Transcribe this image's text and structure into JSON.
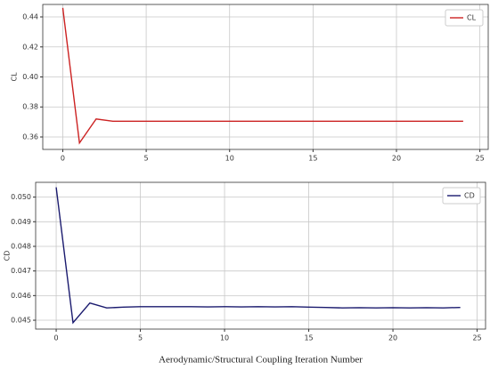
{
  "chart_data": [
    {
      "type": "line",
      "ylabel": "CL",
      "x": [
        0,
        1,
        2,
        3,
        4,
        5,
        6,
        7,
        8,
        9,
        10,
        11,
        12,
        13,
        14,
        15,
        16,
        17,
        18,
        19,
        20,
        21,
        22,
        23,
        24
      ],
      "series": [
        {
          "name": "CL",
          "color": "#cc2222",
          "values": [
            0.446,
            0.356,
            0.372,
            0.3705,
            0.3705,
            0.3705,
            0.3705,
            0.3705,
            0.3705,
            0.3705,
            0.3705,
            0.3705,
            0.3705,
            0.3705,
            0.3705,
            0.3705,
            0.3705,
            0.3705,
            0.3705,
            0.3705,
            0.3705,
            0.3705,
            0.3705,
            0.3705,
            0.3705
          ]
        }
      ],
      "xlim": [
        -1.2,
        25.5
      ],
      "xticks": [
        0,
        5,
        10,
        15,
        20,
        25
      ],
      "ylim": [
        0.3517,
        0.4483
      ],
      "yticks": [
        0.36,
        0.38,
        {
          "value": 0.4,
          "label": "0.40"
        },
        0.42,
        0.44
      ],
      "grid": true,
      "legend": "upper right"
    },
    {
      "type": "line",
      "ylabel": "CD",
      "xlabel": "Aerodynamic/Structural Coupling Iteration Number",
      "x": [
        0,
        1,
        2,
        3,
        4,
        5,
        6,
        7,
        8,
        9,
        10,
        11,
        12,
        13,
        14,
        15,
        16,
        17,
        18,
        19,
        20,
        21,
        22,
        23,
        24
      ],
      "series": [
        {
          "name": "CD",
          "color": "#1a1a6e",
          "values": [
            0.0504,
            0.0449,
            0.0457,
            0.0455,
            0.04553,
            0.04555,
            0.04555,
            0.04555,
            0.04555,
            0.04554,
            0.04555,
            0.04554,
            0.04555,
            0.04554,
            0.04555,
            0.04553,
            0.04552,
            0.0455,
            0.04551,
            0.0455,
            0.04551,
            0.0455,
            0.04551,
            0.0455,
            0.04552
          ]
        }
      ],
      "xlim": [
        -1.22,
        25.5
      ],
      "xticks": [
        0,
        5,
        10,
        15,
        20,
        25
      ],
      "ylim": [
        0.04464,
        0.0506
      ],
      "yticks": [
        0.045,
        0.046,
        0.047,
        0.048,
        0.049,
        {
          "value": 0.05,
          "label": "0.050"
        }
      ],
      "grid": true,
      "legend": "upper right"
    }
  ]
}
